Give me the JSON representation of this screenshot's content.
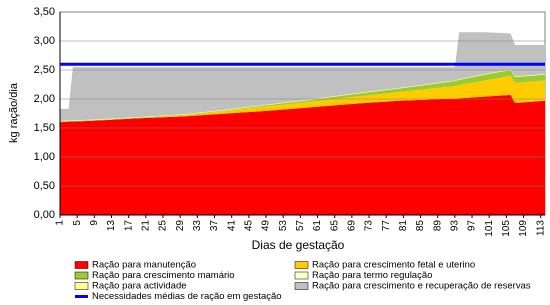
{
  "chart_data": {
    "type": "stacked-area",
    "y_label": "kg ração/dia",
    "x_label": "Dias de gestação",
    "x": [
      1,
      3,
      4,
      10,
      20,
      30,
      40,
      50,
      60,
      70,
      80,
      90,
      93,
      94,
      100,
      106,
      107,
      114
    ],
    "xlim": [
      1,
      114
    ],
    "xticks": [
      1,
      5,
      9,
      13,
      17,
      21,
      25,
      29,
      33,
      37,
      41,
      45,
      49,
      53,
      57,
      61,
      65,
      69,
      73,
      77,
      81,
      85,
      89,
      93,
      97,
      101,
      105,
      109,
      113
    ],
    "ylim": [
      0,
      3.5
    ],
    "yticks": [
      {
        "value": 0,
        "label": "0,00"
      },
      {
        "value": 0.5,
        "label": "0,50"
      },
      {
        "value": 1,
        "label": "1,00"
      },
      {
        "value": 1.5,
        "label": "1,50"
      },
      {
        "value": 2,
        "label": "2,00"
      },
      {
        "value": 2.5,
        "label": "2,50"
      },
      {
        "value": 3,
        "label": "3,00"
      },
      {
        "value": 3.5,
        "label": "3,50"
      }
    ],
    "grid": true,
    "series": [
      {
        "name": "Ração para  manutenção",
        "color": "#ff0000",
        "values": [
          1.6,
          1.61,
          1.61,
          1.63,
          1.67,
          1.7,
          1.75,
          1.8,
          1.86,
          1.92,
          1.97,
          2.0,
          2.0,
          2.01,
          2.04,
          2.07,
          1.93,
          1.97
        ]
      },
      {
        "name": "Ração para crescimento fetal e uterino",
        "color": "#ffcc00",
        "values": [
          0,
          0,
          0,
          0,
          0,
          0.02,
          0.05,
          0.08,
          0.1,
          0.12,
          0.15,
          0.2,
          0.22,
          0.23,
          0.28,
          0.33,
          0.35,
          0.35
        ]
      },
      {
        "name": "Ração para crescimento mamário",
        "color": "#99cc33",
        "values": [
          0.01,
          0.01,
          0.01,
          0.01,
          0.01,
          0.01,
          0.01,
          0.02,
          0.03,
          0.05,
          0.06,
          0.08,
          0.09,
          0.09,
          0.1,
          0.1,
          0.1,
          0.1
        ]
      },
      {
        "name": "Ração para actividade",
        "color": "#ffff99",
        "values": [
          0.01,
          0.01,
          0.01,
          0.01,
          0.01,
          0.01,
          0.01,
          0.01,
          0.01,
          0.01,
          0.01,
          0.01,
          0.01,
          0.01,
          0.01,
          0.01,
          0.01,
          0.01
        ]
      },
      {
        "name": "Ração para termo regulação",
        "color": "#ffffcc",
        "values": [
          0,
          0,
          0,
          0,
          0,
          0,
          0,
          0,
          0,
          0,
          0,
          0,
          0,
          0,
          0,
          0,
          0,
          0
        ]
      },
      {
        "name": "Ração para crescimento e recuperação de reservas",
        "color": "#c0c0c0",
        "values": [
          0.21,
          0.2,
          0.92,
          0.9,
          0.86,
          0.81,
          0.73,
          0.64,
          0.55,
          0.45,
          0.36,
          0.26,
          0.23,
          0.81,
          0.72,
          0.62,
          0.54,
          0.5
        ]
      }
    ],
    "reference_line": {
      "name": "Necessidades médias de ração em gestação",
      "color": "#0000ff",
      "value": 2.6
    }
  }
}
